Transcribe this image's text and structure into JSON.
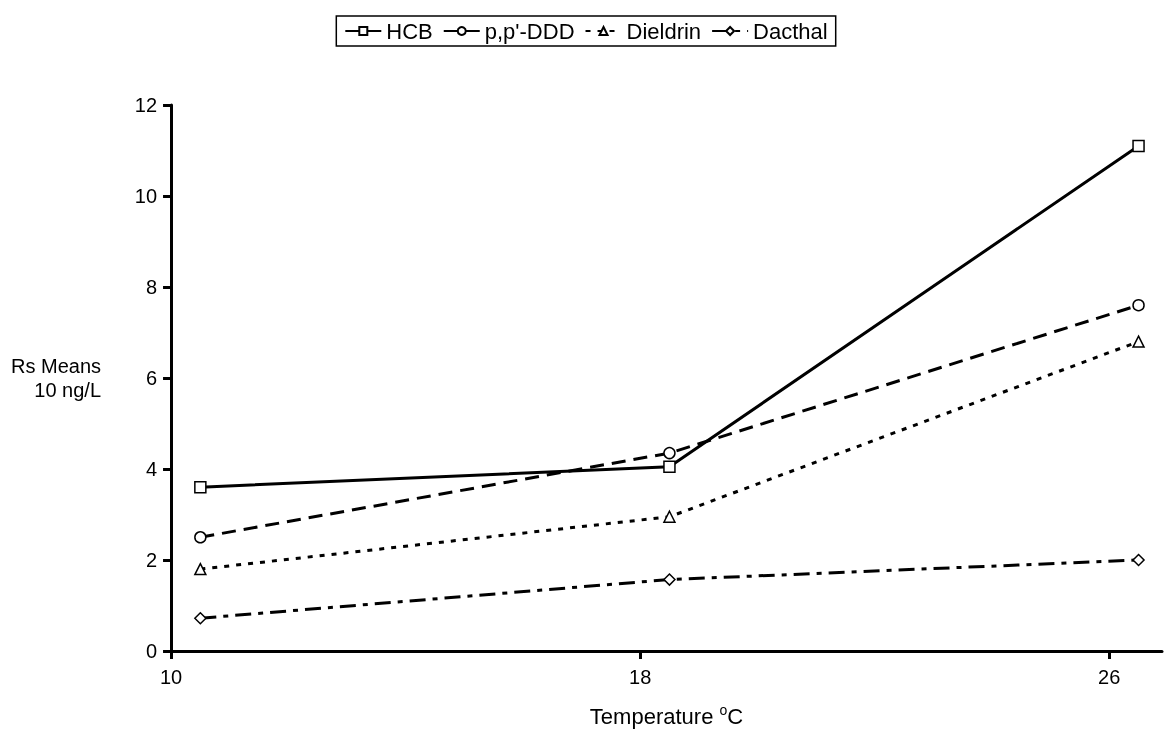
{
  "chart_data": {
    "type": "line",
    "xlabel": "Temperature $^{o}$C",
    "ylabel": "Rs Means\n10 ng/L",
    "x": [
      10.5,
      18.5,
      26.5
    ],
    "xlim": [
      10,
      26.9
    ],
    "xticks": [
      10,
      18,
      26
    ],
    "ylim": [
      0,
      12
    ],
    "yticks": [
      0,
      2,
      4,
      6,
      8,
      10,
      12
    ],
    "grid": false,
    "legend": "top",
    "series": [
      {
        "name": "HCB",
        "color": "#000000",
        "marker": "square",
        "line_style": "solid",
        "values": [
          3.6,
          4.05,
          11.1
        ]
      },
      {
        "name": "p,p'-DDD",
        "color": "#000000",
        "marker": "circle",
        "line_style": "dashed",
        "values": [
          2.5,
          4.35,
          7.6
        ]
      },
      {
        "name": "Dieldrin",
        "color": "#000000",
        "marker": "triangle",
        "line_style": "dotted",
        "values": [
          1.8,
          2.95,
          6.8
        ]
      },
      {
        "name": "Dacthal",
        "color": "#000000",
        "marker": "diamond",
        "line_style": "dashdot",
        "values": [
          0.72,
          1.57,
          2.0
        ]
      }
    ]
  }
}
